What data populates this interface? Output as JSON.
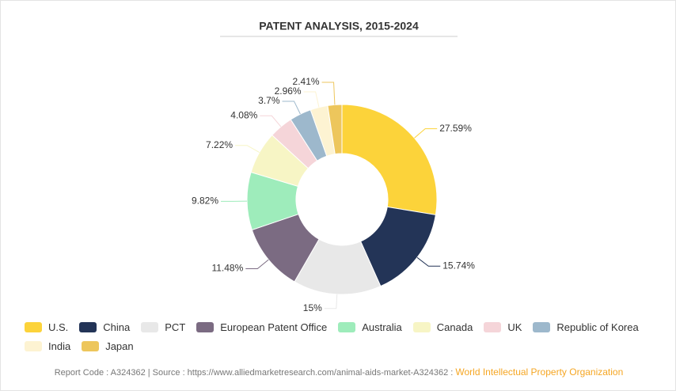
{
  "chart_data": {
    "type": "donut",
    "title": "PATENT ANALYSIS, 2015-2024",
    "categories": [
      "U.S.",
      "China",
      "PCT",
      "European Patent Office",
      "Australia",
      "Canada",
      "UK",
      "Republic of Korea",
      "India",
      "Japan"
    ],
    "values": [
      27.59,
      15.74,
      15,
      11.48,
      9.82,
      7.22,
      4.08,
      3.7,
      2.96,
      2.41
    ],
    "value_labels": [
      "27.59%",
      "15.74%",
      "15%",
      "11.48%",
      "9.82%",
      "7.22%",
      "4.08%",
      "3.7%",
      "2.96%",
      "2.41%"
    ],
    "colors": [
      "#fcd33a",
      "#233457",
      "#e8e8e8",
      "#7b6b82",
      "#9eecbb",
      "#f7f5c5",
      "#f5d5d9",
      "#9db8cc",
      "#fdf3d2",
      "#edc65c"
    ],
    "footer": {
      "source": "Report Code : A324362  |  Source : https://www.alliedmarketresearch.com/animal-aids-market-A324362 :",
      "credit": "World Intellectual Property Organization"
    }
  }
}
